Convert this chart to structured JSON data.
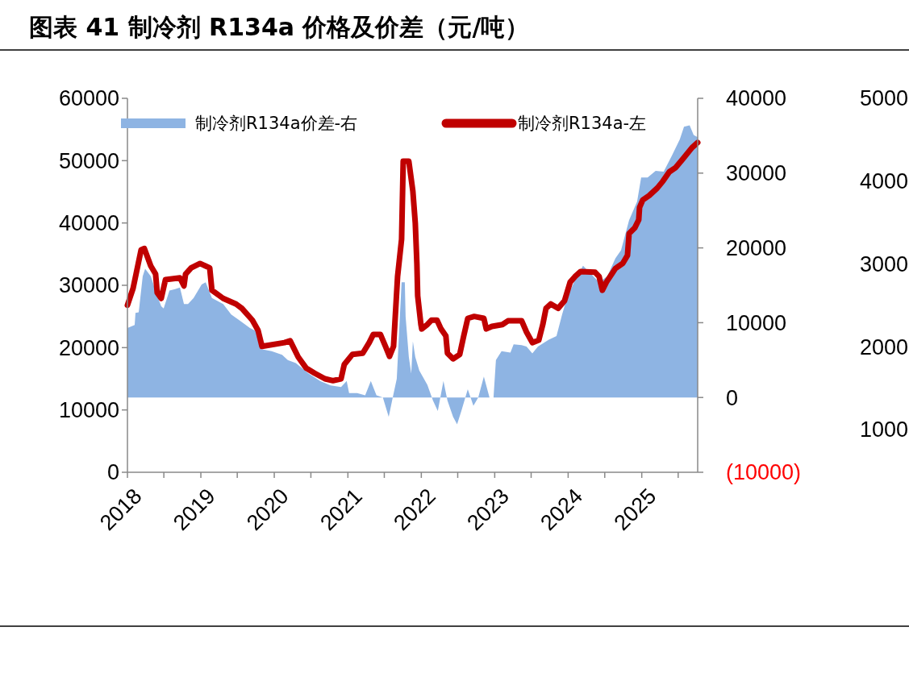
{
  "chart_data": {
    "type": "line",
    "title": "图表 41 制冷剂 R134a 价格及价差（元/吨）",
    "xlim": [
      "2018-01-01",
      "2025-10-06"
    ],
    "xticks": [
      {
        "value": "2018",
        "label": "2018"
      },
      {
        "value": "2018-07",
        "label": null
      },
      {
        "value": "2019",
        "label": "2019"
      },
      {
        "value": "2019-07",
        "label": null
      },
      {
        "value": "2020",
        "label": "2020"
      },
      {
        "value": "2020-07",
        "label": null
      },
      {
        "value": "2021",
        "label": "2021"
      },
      {
        "value": "2021-07",
        "label": null
      },
      {
        "value": "2022",
        "label": "2022"
      },
      {
        "value": "2022-07",
        "label": null
      },
      {
        "value": "2023",
        "label": "2023"
      },
      {
        "value": "2023-07",
        "label": null
      },
      {
        "value": "2024",
        "label": "2024"
      },
      {
        "value": "2024-07",
        "label": null
      },
      {
        "value": "2025",
        "label": "2025"
      },
      {
        "value": "2025-07",
        "label": null
      }
    ],
    "ylim": [
      0,
      60000
    ],
    "yticks": [
      0,
      10000,
      20000,
      30000,
      40000,
      50000,
      60000
    ],
    "y2lim": [
      -10000,
      40000
    ],
    "y2ticks": [
      {
        "value": -10000,
        "label": "(10000)"
      },
      0,
      10000,
      20000,
      30000,
      40000
    ],
    "y3lim": [
      484,
      5000
    ],
    "y3ticks": [
      1000,
      2000,
      3000,
      4000,
      5000
    ],
    "legend": "top",
    "grid": false,
    "series": [
      {
        "name": "制冷剂R134a价差-右",
        "type": "area",
        "axis": "y2",
        "color": "#8eb4e3",
        "x": [
          "2018-01-01",
          "2018-02-06",
          "2018-02-10",
          "2018-02-26",
          "2018-03-18",
          "2018-03-30",
          "2018-04-27",
          "2018-05-29",
          "2018-06-18",
          "2018-06-30",
          "2018-07-29",
          "2018-08-26",
          "2018-09-19",
          "2018-10-09",
          "2018-10-29",
          "2018-11-26",
          "2019-01-05",
          "2019-01-25",
          "2019-02-25",
          "2019-04-22",
          "2019-06-01",
          "2019-07-12",
          "2019-09-02",
          "2019-09-30",
          "2019-10-24",
          "2019-12-19",
          "2020-02-09",
          "2020-03-08",
          "2020-04-17",
          "2020-06-20",
          "2020-08-16",
          "2020-10-07",
          "2020-11-28",
          "2020-12-26",
          "2021-01-07",
          "2021-02-16",
          "2021-03-28",
          "2021-04-25",
          "2021-05-23",
          "2021-06-24",
          "2021-07-23",
          "2021-08-12",
          "2021-09-01",
          "2021-09-13",
          "2021-09-25",
          "2021-10-11",
          "2021-10-15",
          "2021-10-31",
          "2021-11-12",
          "2021-11-20",
          "2021-12-02",
          "2021-12-22",
          "2022-01-31",
          "2022-02-28",
          "2022-03-24",
          "2022-04-21",
          "2022-05-11",
          "2022-06-08",
          "2022-06-28",
          "2022-07-19",
          "2022-08-20",
          "2022-09-17",
          "2022-10-11",
          "2022-11-08",
          "2022-12-06",
          "2022-12-26",
          "2023-01-07",
          "2023-02-04",
          "2023-03-20",
          "2023-04-05",
          "2023-05-15",
          "2023-06-08",
          "2023-07-07",
          "2023-08-04",
          "2023-09-25",
          "2023-11-04",
          "2023-12-02",
          "2023-12-26",
          "2024-02-04",
          "2024-03-15",
          "2024-04-24",
          "2024-06-03",
          "2024-07-14",
          "2024-08-23",
          "2024-09-20",
          "2024-10-30",
          "2024-12-09",
          "2024-12-29",
          "2025-01-30",
          "2025-03-11",
          "2025-04-20",
          "2025-05-30",
          "2025-07-09",
          "2025-07-30",
          "2025-08-27",
          "2025-09-16",
          "2025-10-06"
        ],
        "values": [
          9300,
          9700,
          11300,
          11400,
          16200,
          17200,
          16200,
          13600,
          12200,
          11900,
          14300,
          14500,
          14700,
          12500,
          12500,
          13300,
          15100,
          15400,
          13300,
          12500,
          11100,
          10300,
          9300,
          8900,
          6500,
          6200,
          5700,
          5000,
          4600,
          3200,
          2200,
          1600,
          1400,
          2200,
          600,
          600,
          300,
          2200,
          300,
          0,
          -2600,
          0,
          2500,
          8900,
          15400,
          15400,
          10800,
          5400,
          3200,
          7500,
          5400,
          3600,
          1700,
          -400,
          -1800,
          2200,
          -400,
          -2600,
          -3600,
          -1800,
          1100,
          -1100,
          0,
          2800,
          0,
          0,
          5000,
          6200,
          6000,
          7100,
          7000,
          6800,
          5900,
          6800,
          7700,
          8200,
          11100,
          13300,
          15700,
          17600,
          16500,
          15400,
          16200,
          18600,
          19700,
          23700,
          26200,
          29400,
          29400,
          30300,
          30200,
          32300,
          34500,
          36200,
          36400,
          35100,
          34800
        ]
      },
      {
        "name": "制冷剂R134a-左",
        "type": "line",
        "axis": "y",
        "color": "#c00000",
        "x": [
          "2018-01-01",
          "2018-01-29",
          "2018-03-10",
          "2018-03-26",
          "2018-04-27",
          "2018-05-21",
          "2018-05-29",
          "2018-06-18",
          "2018-07-09",
          "2018-09-19",
          "2018-10-09",
          "2018-10-17",
          "2018-11-14",
          "2018-12-28",
          "2019-02-14",
          "2019-02-25",
          "2019-04-22",
          "2019-06-25",
          "2019-07-24",
          "2019-09-14",
          "2019-10-12",
          "2019-11-01",
          "2020-02-21",
          "2020-03-20",
          "2020-04-29",
          "2020-06-08",
          "2020-07-19",
          "2020-09-09",
          "2020-10-19",
          "2020-11-28",
          "2020-12-14",
          "2021-01-23",
          "2021-03-16",
          "2021-04-17",
          "2021-05-07",
          "2021-06-12",
          "2021-07-07",
          "2021-07-27",
          "2021-08-16",
          "2021-09-05",
          "2021-09-25",
          "2021-10-03",
          "2021-10-31",
          "2021-11-20",
          "2021-12-02",
          "2021-12-10",
          "2021-12-14",
          "2021-12-30",
          "2022-01-03",
          "2022-01-31",
          "2022-02-20",
          "2022-03-20",
          "2022-04-09",
          "2022-05-03",
          "2022-05-11",
          "2022-06-08",
          "2022-07-11",
          "2022-07-31",
          "2022-08-20",
          "2022-09-21",
          "2022-11-08",
          "2022-11-20",
          "2022-12-18",
          "2023-02-08",
          "2023-03-08",
          "2023-05-15",
          "2023-06-08",
          "2023-07-07",
          "2023-08-08",
          "2023-08-28",
          "2023-09-13",
          "2023-10-07",
          "2023-11-12",
          "2023-12-14",
          "2024-01-11",
          "2024-02-04",
          "2024-03-03",
          "2024-05-14",
          "2024-06-03",
          "2024-06-19",
          "2024-07-09",
          "2024-08-23",
          "2024-09-28",
          "2024-10-22",
          "2024-10-30",
          "2024-11-27",
          "2024-12-17",
          "2024-12-21",
          "2025-01-06",
          "2025-02-07",
          "2025-03-19",
          "2025-04-16",
          "2025-05-18",
          "2025-06-19",
          "2025-07-25",
          "2025-09-08",
          "2025-10-06"
        ],
        "values": [
          26800,
          29500,
          35700,
          35900,
          33100,
          31800,
          28800,
          27900,
          30900,
          31200,
          29900,
          31800,
          32800,
          33500,
          32800,
          29200,
          27900,
          27000,
          26300,
          24400,
          22800,
          20200,
          20800,
          21100,
          18500,
          16700,
          15900,
          15000,
          14700,
          15000,
          17300,
          18900,
          19100,
          20800,
          22100,
          22100,
          20200,
          18600,
          20200,
          31400,
          37400,
          49900,
          49900,
          45100,
          40000,
          33500,
          28300,
          23700,
          23000,
          23700,
          24400,
          24400,
          23000,
          21900,
          19100,
          18200,
          18900,
          21900,
          24700,
          25000,
          24700,
          23000,
          23400,
          23700,
          24300,
          24300,
          22500,
          20800,
          21200,
          23700,
          26300,
          27000,
          26300,
          27500,
          30500,
          31400,
          32200,
          32100,
          31400,
          29200,
          30500,
          32700,
          33500,
          34800,
          38300,
          39200,
          40500,
          42500,
          43700,
          44400,
          45600,
          46700,
          48200,
          48900,
          50300,
          52100,
          52900
        ]
      }
    ]
  }
}
